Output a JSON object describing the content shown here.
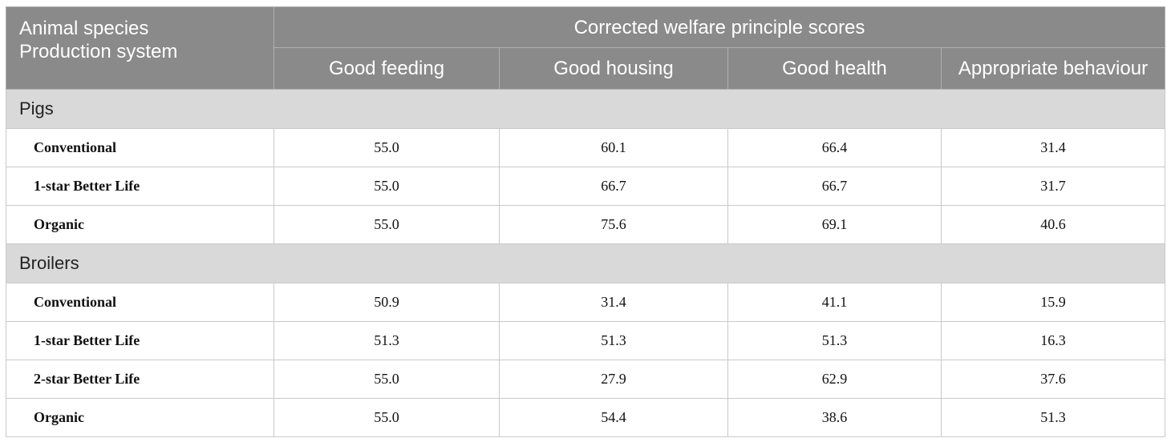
{
  "header": {
    "corner_line1": "Animal species",
    "corner_line2": "Production system",
    "group_label": "Corrected welfare principle scores",
    "columns": [
      "Good feeding",
      "Good housing",
      "Good health",
      "Appropriate behaviour"
    ]
  },
  "sections": [
    {
      "name": "Pigs",
      "rows": [
        {
          "label": "Conventional",
          "values": [
            "55.0",
            "60.1",
            "66.4",
            "31.4"
          ]
        },
        {
          "label": "1-star Better Life",
          "values": [
            "55.0",
            "66.7",
            "66.7",
            "31.7"
          ]
        },
        {
          "label": "Organic",
          "values": [
            "55.0",
            "75.6",
            "69.1",
            "40.6"
          ]
        }
      ]
    },
    {
      "name": "Broilers",
      "rows": [
        {
          "label": "Conventional",
          "values": [
            "50.9",
            "31.4",
            "41.1",
            "15.9"
          ]
        },
        {
          "label": "1-star Better Life",
          "values": [
            "51.3",
            "51.3",
            "51.3",
            "16.3"
          ]
        },
        {
          "label": "2-star Better Life",
          "values": [
            "55.0",
            "27.9",
            "62.9",
            "37.6"
          ]
        },
        {
          "label": "Organic",
          "values": [
            "55.0",
            "54.4",
            "38.6",
            "51.3"
          ]
        }
      ]
    }
  ]
}
